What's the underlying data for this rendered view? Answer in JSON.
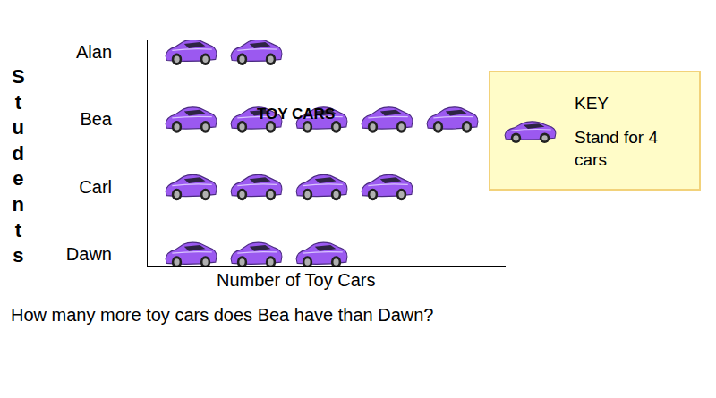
{
  "chart_data": {
    "type": "pictograph",
    "title": "TOY CARS",
    "x_label": "Number of Toy Cars",
    "y_label": "Students",
    "categories": [
      "Alan",
      "Bea",
      "Carl",
      "Dawn"
    ],
    "values": [
      8,
      20,
      16,
      12
    ],
    "color": "#9b59f0",
    "key": {
      "title": "KEY",
      "text": "Stand for 4 cars",
      "value": 4
    },
    "tick_labels": "y"
  },
  "question": "How many more toy cars does Bea have than Dawn?"
}
